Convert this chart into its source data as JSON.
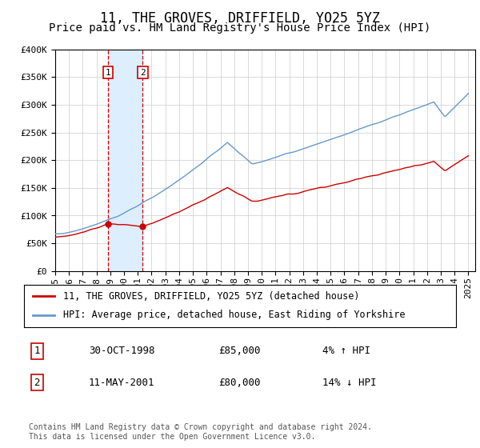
{
  "title": "11, THE GROVES, DRIFFIELD, YO25 5YZ",
  "subtitle": "Price paid vs. HM Land Registry's House Price Index (HPI)",
  "ylim": [
    0,
    400000
  ],
  "yticks": [
    0,
    50000,
    100000,
    150000,
    200000,
    250000,
    300000,
    350000,
    400000
  ],
  "ytick_labels": [
    "£0",
    "£50K",
    "£100K",
    "£150K",
    "£200K",
    "£250K",
    "£300K",
    "£350K",
    "£400K"
  ],
  "xlim_start": 1995.0,
  "xlim_end": 2025.5,
  "transaction1_date": 1998.83,
  "transaction1_price": 85000,
  "transaction2_date": 2001.36,
  "transaction2_price": 80000,
  "red_color": "#cc0000",
  "blue_color": "#6699cc",
  "shade_color": "#ddeeff",
  "legend_label_red": "11, THE GROVES, DRIFFIELD, YO25 5YZ (detached house)",
  "legend_label_blue": "HPI: Average price, detached house, East Riding of Yorkshire",
  "table_rows": [
    [
      "1",
      "30-OCT-1998",
      "£85,000",
      "4% ↑ HPI"
    ],
    [
      "2",
      "11-MAY-2001",
      "£80,000",
      "14% ↓ HPI"
    ]
  ],
  "footer": "Contains HM Land Registry data © Crown copyright and database right 2024.\nThis data is licensed under the Open Government Licence v3.0.",
  "title_fontsize": 12,
  "subtitle_fontsize": 10,
  "tick_fontsize": 8,
  "legend_fontsize": 8.5,
  "footer_fontsize": 7
}
